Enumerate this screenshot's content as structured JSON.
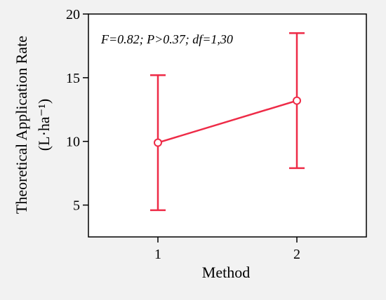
{
  "chart_data": {
    "type": "line",
    "title": "",
    "xlabel": "Method",
    "ylabel_line1": "Theoretical Application Rate",
    "ylabel_line2": "(L·ha⁻¹)",
    "annotation": "F=0.82; P>0.37; df=1,30",
    "x": [
      1,
      2
    ],
    "x_tick_labels": [
      "1",
      "2"
    ],
    "y_ticks": [
      5,
      10,
      15,
      20
    ],
    "y_tick_labels": [
      "5",
      "10",
      "15",
      "20"
    ],
    "xlim": [
      0.5,
      2.5
    ],
    "ylim": [
      2.5,
      20
    ],
    "series": [
      {
        "values": [
          9.9,
          13.2
        ],
        "error_low": [
          4.6,
          7.9
        ],
        "error_high": [
          15.2,
          18.5
        ]
      }
    ],
    "grid": false,
    "colors": {
      "series": "#ee2b47",
      "axis": "#000000",
      "background": "#f2f2f2",
      "plot_area": "#ffffff"
    }
  }
}
